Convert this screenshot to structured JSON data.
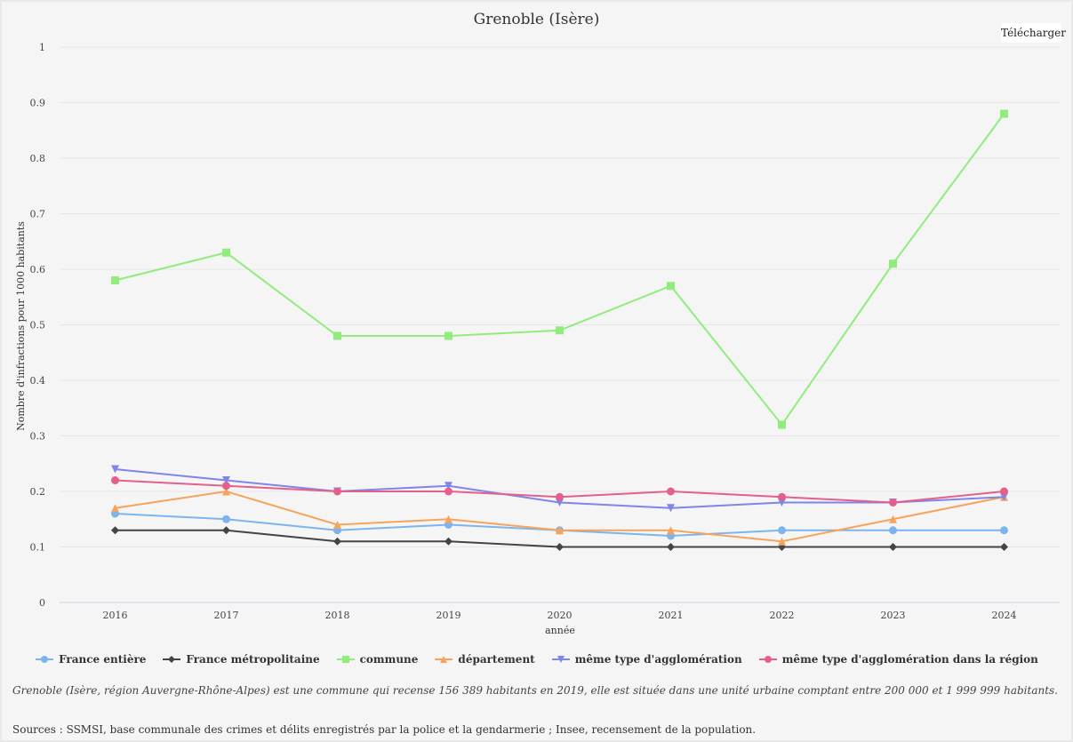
{
  "download_label": "Télécharger",
  "footnote": "Grenoble (Isère, région Auvergne-Rhône-Alpes) est une commune qui recense 156 389 habitants en 2019, elle est située dans une unité urbaine comptant entre 200 000 et 1 999 999 habitants.",
  "sources": "Sources : SSMSI, base communale des crimes et délits enregistrés par la police et la gendarmerie ; Insee, recensement de la population.",
  "chart_data": {
    "type": "line",
    "title": "Grenoble (Isère)",
    "xlabel": "année",
    "ylabel": "Nombre d'infractions pour 1000 habitants",
    "ylim": [
      0,
      1
    ],
    "yticks": [
      "0",
      "0.1",
      "0.2",
      "0.3",
      "0.4",
      "0.5",
      "0.6",
      "0.7",
      "0.8",
      "0.9",
      "1"
    ],
    "categories": [
      "2016",
      "2017",
      "2018",
      "2019",
      "2020",
      "2021",
      "2022",
      "2023",
      "2024"
    ],
    "grid": true,
    "legend_position": "bottom",
    "series": [
      {
        "name": "France entière",
        "color": "#7cb5ec",
        "marker": "circle",
        "values": [
          0.16,
          0.15,
          0.13,
          0.14,
          0.13,
          0.12,
          0.13,
          0.13,
          0.13
        ]
      },
      {
        "name": "France métropolitaine",
        "color": "#434348",
        "marker": "diamond",
        "values": [
          0.13,
          0.13,
          0.11,
          0.11,
          0.1,
          0.1,
          0.1,
          0.1,
          0.1
        ]
      },
      {
        "name": "commune",
        "color": "#90ed7d",
        "marker": "square",
        "values": [
          0.58,
          0.63,
          0.48,
          0.48,
          0.49,
          0.57,
          0.32,
          0.61,
          0.88
        ]
      },
      {
        "name": "département",
        "color": "#f7a35c",
        "marker": "triangle",
        "values": [
          0.17,
          0.2,
          0.14,
          0.15,
          0.13,
          0.13,
          0.11,
          0.15,
          0.19
        ]
      },
      {
        "name": "même type d'agglomération",
        "color": "#8085e9",
        "marker": "triangle-down",
        "values": [
          0.24,
          0.22,
          0.2,
          0.21,
          0.18,
          0.17,
          0.18,
          0.18,
          0.19
        ]
      },
      {
        "name": "même type d'agglomération dans la région",
        "color": "#e4608a",
        "marker": "circle",
        "values": [
          0.22,
          0.21,
          0.2,
          0.2,
          0.19,
          0.2,
          0.19,
          0.18,
          0.2
        ]
      }
    ]
  }
}
